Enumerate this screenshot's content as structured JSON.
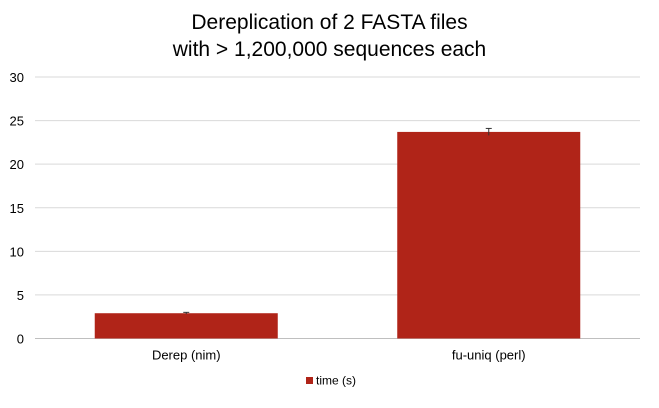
{
  "chart_data": {
    "type": "bar",
    "title_lines": [
      "Dereplication of 2 FASTA files",
      "with > 1,200,000 sequences each"
    ],
    "categories": [
      "Derep (nim)",
      "fu-uniq (perl)"
    ],
    "series": [
      {
        "name": "time (s)",
        "values": [
          2.9,
          23.7
        ],
        "error": [
          0.1,
          0.4
        ]
      }
    ],
    "ylim": [
      0,
      30
    ],
    "yticks": [
      0,
      5,
      10,
      15,
      20,
      25,
      30
    ],
    "grid": true,
    "legend_position": "bottom",
    "bar_color": "#b02418",
    "error_bar_color": "#333333"
  }
}
